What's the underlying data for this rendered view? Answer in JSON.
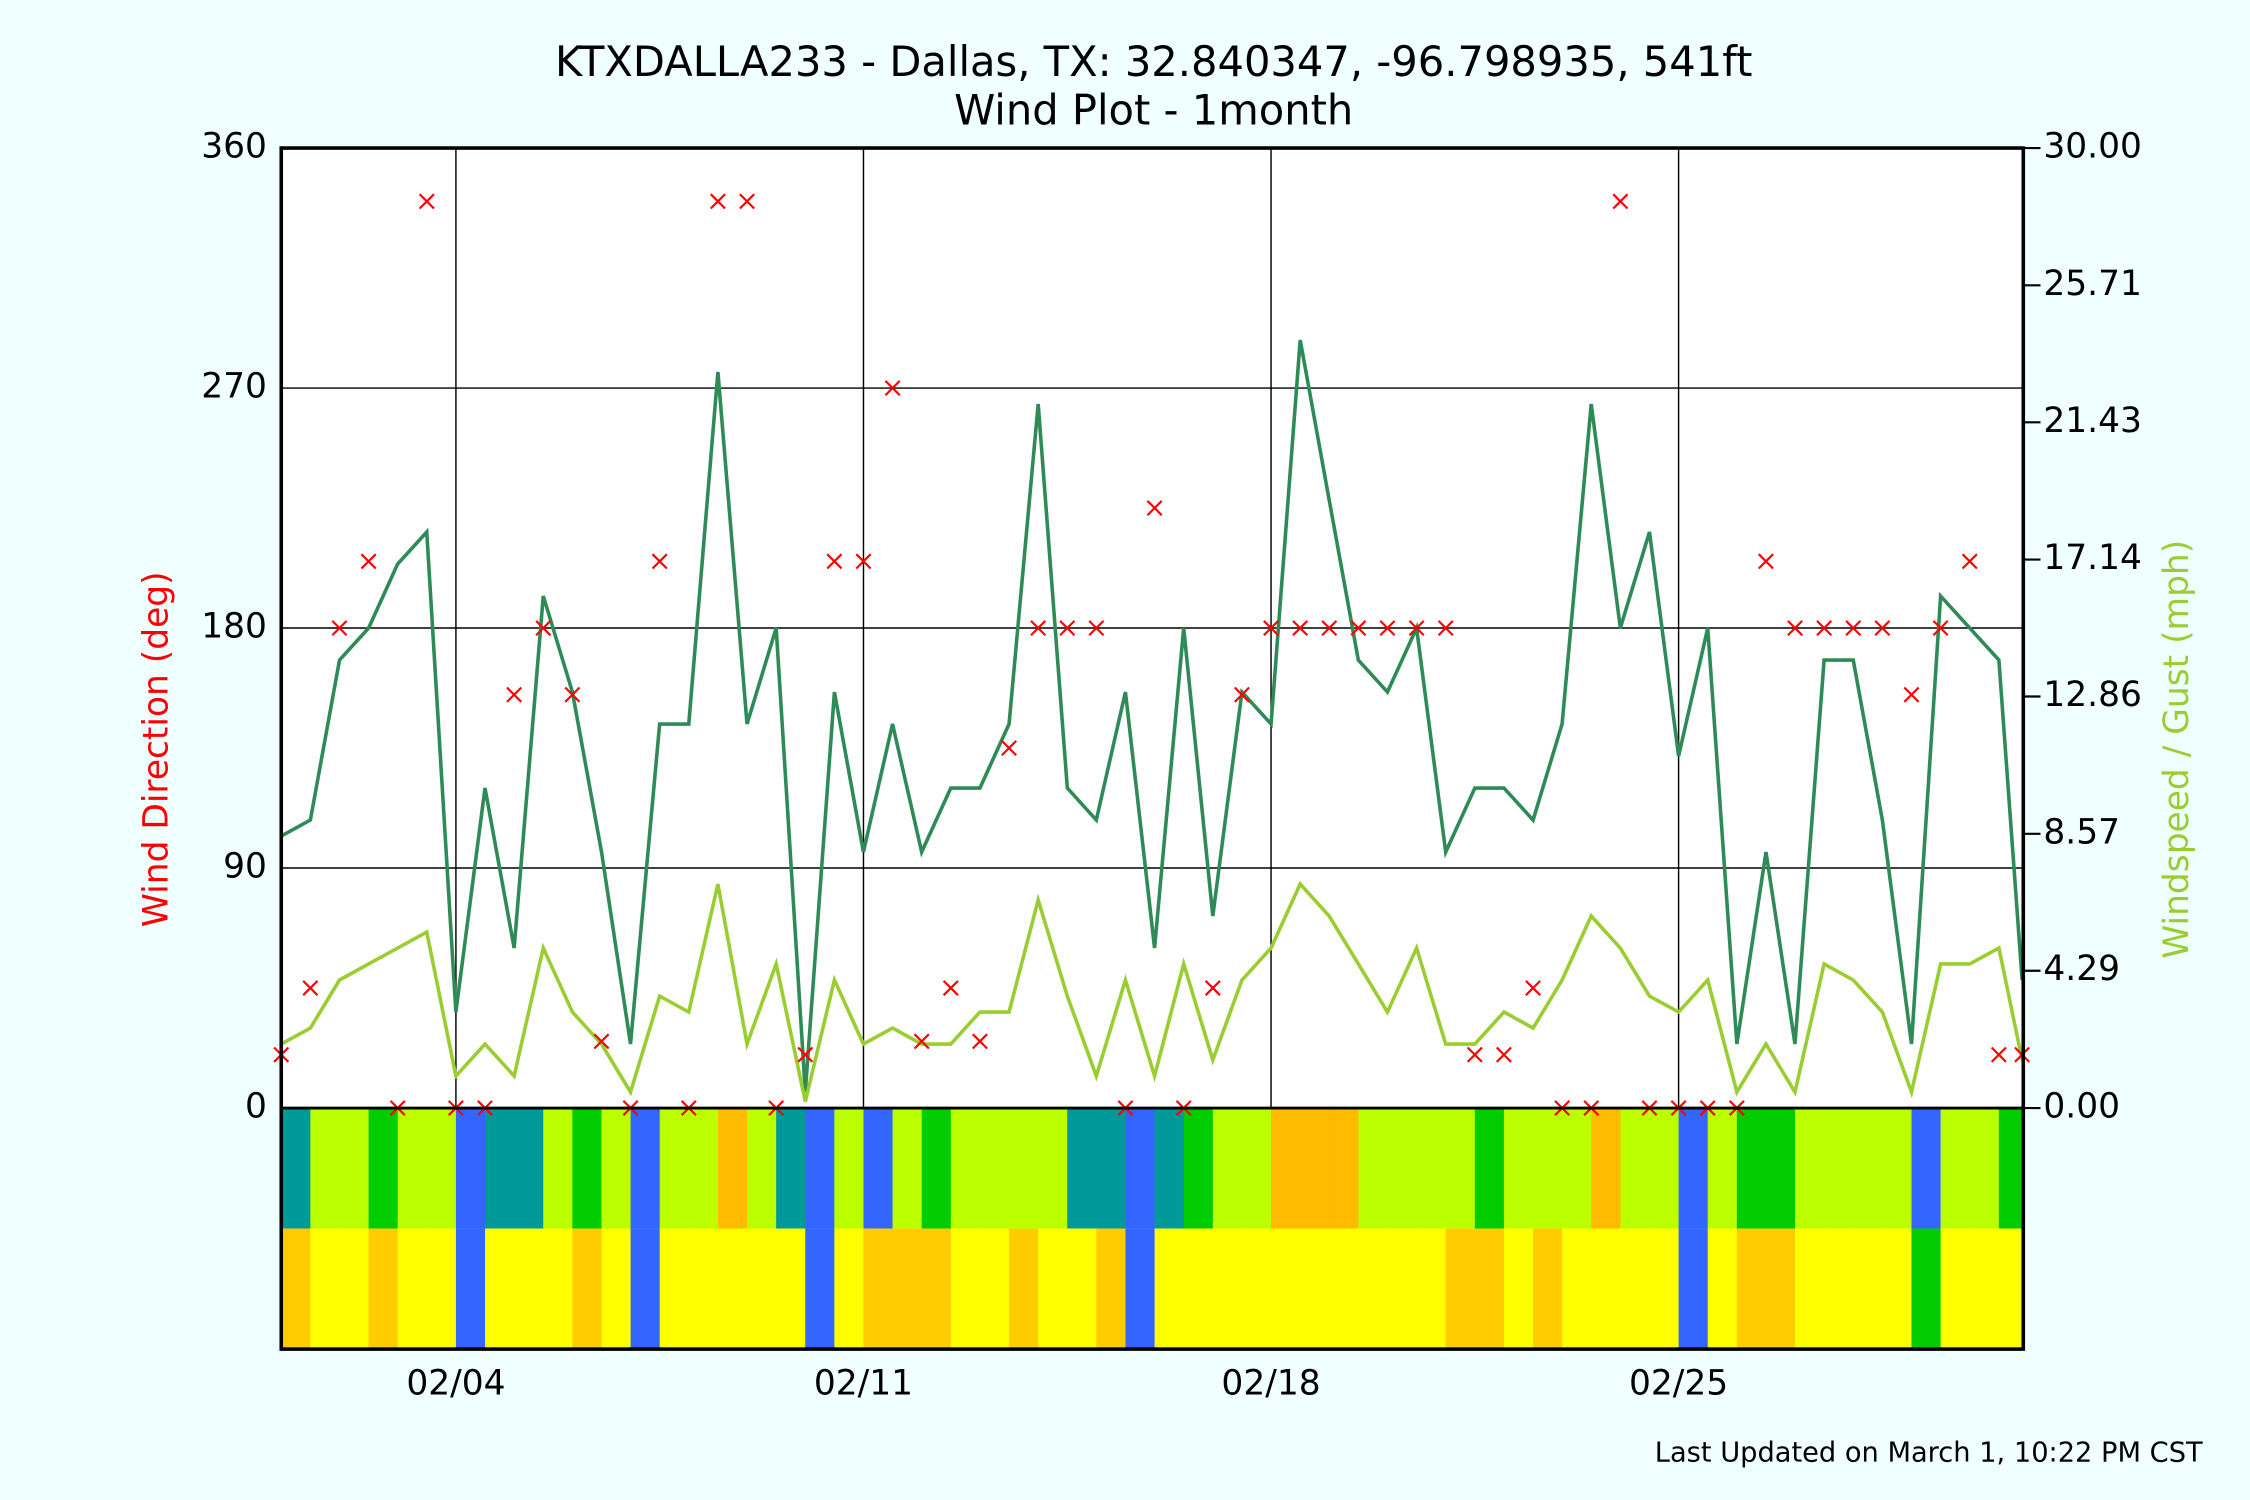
{
  "chart_data": {
    "type": "line",
    "title": "KTXDALLA233 - Dallas, TX: 32.840347, -96.798935, 541ft",
    "subtitle": "Wind Plot - 1month",
    "ylabel": "Wind Direction (deg)",
    "y2label": "Windspeed / Gust (mph)",
    "footer": "Last Updated on March 1, 10:22 PM CST",
    "grid": true,
    "x": [
      0,
      0.5,
      1,
      1.5,
      2,
      2.5,
      3,
      3.5,
      4,
      4.5,
      5,
      5.5,
      6,
      6.5,
      7,
      7.5,
      8,
      8.5,
      9,
      9.5,
      10,
      10.5,
      11,
      11.5,
      12,
      12.5,
      13,
      13.5,
      14,
      14.5,
      15,
      15.5,
      16,
      16.5,
      17,
      17.5,
      18,
      18.5,
      19,
      19.5,
      20,
      20.5,
      21,
      21.5,
      22,
      22.5,
      23,
      23.5,
      24,
      24.5,
      25,
      25.5,
      26,
      26.5,
      27,
      27.5,
      28,
      28.5,
      29,
      29.5,
      29.9
    ],
    "xlim": [
      0,
      29.92
    ],
    "xticks": [
      {
        "value": 3,
        "label": "02/04"
      },
      {
        "value": 10,
        "label": "02/11"
      },
      {
        "value": 17,
        "label": "02/18"
      },
      {
        "value": 24,
        "label": "02/25"
      }
    ],
    "ylim": [
      0,
      360
    ],
    "yticks": [
      0,
      90,
      180,
      270,
      360
    ],
    "y2lim": [
      0,
      30
    ],
    "y2ticks": [
      {
        "value": 0,
        "label": "0.00"
      },
      4.29,
      8.57,
      12.86,
      17.14,
      21.43,
      25.71,
      {
        "value": 30,
        "label": "30.00"
      }
    ],
    "series": [
      {
        "type": "line",
        "axis": "y2",
        "color": "#2e8b57",
        "values": [
          8.5,
          9,
          14,
          15,
          17,
          18,
          3,
          10,
          5,
          16,
          13,
          8,
          2,
          12,
          12,
          23,
          12,
          15,
          0.5,
          13,
          8,
          12,
          8,
          10,
          10,
          12,
          22,
          10,
          9,
          13,
          5,
          15,
          6,
          13,
          12,
          24,
          19,
          14,
          13,
          15,
          8,
          10,
          10,
          9,
          12,
          22,
          15,
          18,
          11,
          15,
          2,
          8,
          2,
          14,
          14,
          9,
          2,
          16,
          15,
          14,
          4
        ]
      },
      {
        "type": "line",
        "axis": "y2",
        "color": "#9acd32",
        "values": [
          2,
          2.5,
          4,
          4.5,
          5,
          5.5,
          1,
          2,
          1,
          5,
          3,
          2,
          0.5,
          3.5,
          3,
          7,
          2,
          4.5,
          0.2,
          4,
          2,
          2.5,
          2,
          2,
          3,
          3,
          6.5,
          3.5,
          1,
          4,
          1,
          4.5,
          1.5,
          4,
          5,
          7,
          6,
          4.5,
          3,
          5,
          2,
          2,
          3,
          2.5,
          4,
          6,
          5,
          3.5,
          3,
          4,
          0.5,
          2,
          0.5,
          4.5,
          4,
          3,
          0.5,
          4.5,
          4.5,
          5,
          1.5
        ]
      },
      {
        "type": "scatter",
        "axis": "y",
        "color": "#ff0000",
        "values": [
          20,
          45,
          180,
          205,
          0,
          340,
          0,
          0,
          155,
          180,
          155,
          25,
          0,
          205,
          0,
          340,
          340,
          0,
          20,
          205,
          205,
          270,
          25,
          45,
          25,
          135,
          180,
          180,
          180,
          0,
          225,
          0,
          45,
          155,
          180,
          180,
          180,
          180,
          180,
          180,
          180,
          20,
          20,
          45,
          0,
          0,
          340,
          0,
          0,
          0,
          0,
          205,
          180,
          180,
          180,
          180,
          155,
          180,
          205,
          20,
          20
        ]
      }
    ],
    "strips": [
      {
        "colors": [
          "#009999",
          "#bbff00",
          "#bbff00",
          "#00cc00",
          "#bbff00",
          "#bbff00",
          "#3366ff",
          "#009999",
          "#009999",
          "#bbff00",
          "#00cc00",
          "#bbff00",
          "#3366ff",
          "#bbff00",
          "#bbff00",
          "#ffbb00",
          "#bbff00",
          "#009999",
          "#3366ff",
          "#bbff00",
          "#3366ff",
          "#bbff00",
          "#00cc00",
          "#bbff00",
          "#bbff00",
          "#bbff00",
          "#bbff00",
          "#009999",
          "#009999",
          "#3366ff",
          "#009999",
          "#00cc00",
          "#bbff00",
          "#bbff00",
          "#ffbb00",
          "#ffbb00",
          "#ffbb00",
          "#bbff00",
          "#bbff00",
          "#bbff00",
          "#bbff00",
          "#00cc00",
          "#bbff00",
          "#bbff00",
          "#bbff00",
          "#ffbb00",
          "#bbff00",
          "#bbff00",
          "#3366ff",
          "#bbff00",
          "#00cc00",
          "#00cc00",
          "#bbff00",
          "#bbff00",
          "#bbff00",
          "#bbff00",
          "#3366ff",
          "#bbff00",
          "#bbff00",
          "#00cc00",
          "#bbff00"
        ]
      },
      {
        "colors": [
          "#ffcc00",
          "#ffff00",
          "#ffff00",
          "#ffcc00",
          "#ffff00",
          "#ffff00",
          "#3366ff",
          "#ffff00",
          "#ffff00",
          "#ffff00",
          "#ffcc00",
          "#ffff00",
          "#3366ff",
          "#ffff00",
          "#ffff00",
          "#ffff00",
          "#ffff00",
          "#ffff00",
          "#3366ff",
          "#ffff00",
          "#ffcc00",
          "#ffcc00",
          "#ffcc00",
          "#ffff00",
          "#ffff00",
          "#ffcc00",
          "#ffff00",
          "#ffff00",
          "#ffcc00",
          "#3366ff",
          "#ffff00",
          "#ffff00",
          "#ffff00",
          "#ffff00",
          "#ffff00",
          "#ffff00",
          "#ffff00",
          "#ffff00",
          "#ffff00",
          "#ffff00",
          "#ffcc00",
          "#ffcc00",
          "#ffff00",
          "#ffcc00",
          "#ffff00",
          "#ffff00",
          "#ffff00",
          "#ffff00",
          "#3366ff",
          "#ffff00",
          "#ffcc00",
          "#ffcc00",
          "#ffff00",
          "#ffff00",
          "#ffff00",
          "#ffff00",
          "#00cc00",
          "#ffff00",
          "#ffff00",
          "#ffff00",
          "#ffff00"
        ]
      }
    ]
  }
}
